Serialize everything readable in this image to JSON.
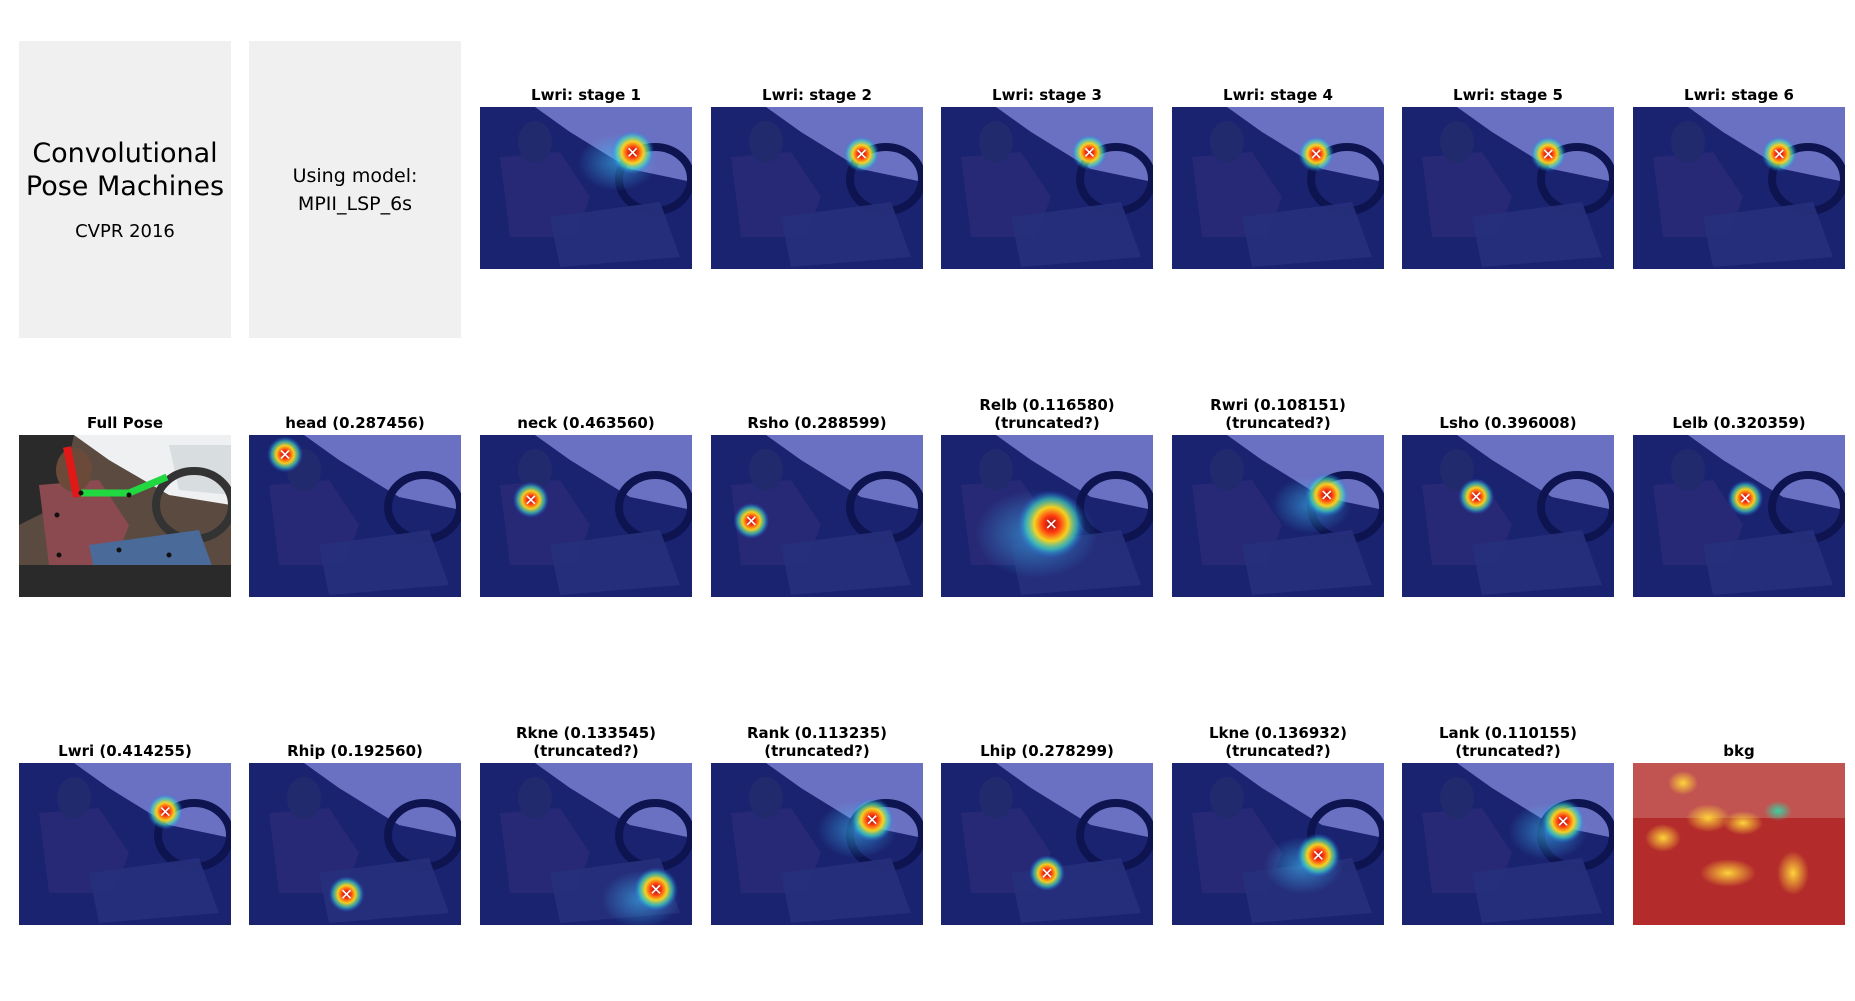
{
  "title_box": {
    "line1": "Convolutional",
    "line2": "Pose Machines",
    "line3": "CVPR 2016"
  },
  "model_box": {
    "line1": "Using model:",
    "line2": "MPII_LSP_6s"
  },
  "stages": [
    {
      "title": "Lwri: stage 1",
      "hx": 0.72,
      "hy": 0.28,
      "spread": "mid"
    },
    {
      "title": "Lwri: stage 2",
      "hx": 0.71,
      "hy": 0.29,
      "spread": "low"
    },
    {
      "title": "Lwri: stage 3",
      "hx": 0.7,
      "hy": 0.28,
      "spread": "low"
    },
    {
      "title": "Lwri: stage 4",
      "hx": 0.68,
      "hy": 0.29,
      "spread": "low"
    },
    {
      "title": "Lwri: stage 5",
      "hx": 0.69,
      "hy": 0.29,
      "spread": "low"
    },
    {
      "title": "Lwri: stage 6",
      "hx": 0.69,
      "hy": 0.29,
      "spread": "low"
    }
  ],
  "full_pose": {
    "title": "Full Pose"
  },
  "parts_row2": [
    {
      "line1": "head (0.287456)",
      "line2": "",
      "hx": 0.17,
      "hy": 0.12,
      "spread": "low"
    },
    {
      "line1": "neck (0.463560)",
      "line2": "",
      "hx": 0.24,
      "hy": 0.4,
      "spread": "low"
    },
    {
      "line1": "Rsho (0.288599)",
      "line2": "",
      "hx": 0.19,
      "hy": 0.53,
      "spread": "low"
    },
    {
      "line1": "Relb (0.116580)",
      "line2": "(truncated?)",
      "hx": 0.52,
      "hy": 0.55,
      "spread": "high"
    },
    {
      "line1": "Rwri (0.108151)",
      "line2": "(truncated?)",
      "hx": 0.73,
      "hy": 0.37,
      "spread": "mid"
    },
    {
      "line1": "Lsho (0.396008)",
      "line2": "",
      "hx": 0.35,
      "hy": 0.38,
      "spread": "low"
    },
    {
      "line1": "Lelb (0.320359)",
      "line2": "",
      "hx": 0.53,
      "hy": 0.39,
      "spread": "low"
    }
  ],
  "parts_row3": [
    {
      "line1": "Lwri (0.414255)",
      "line2": "",
      "hx": 0.69,
      "hy": 0.3,
      "spread": "low"
    },
    {
      "line1": "Rhip (0.192560)",
      "line2": "",
      "hx": 0.46,
      "hy": 0.81,
      "spread": "low"
    },
    {
      "line1": "Rkne (0.133545)",
      "line2": "(truncated?)",
      "hx": 0.83,
      "hy": 0.78,
      "spread": "mid"
    },
    {
      "line1": "Rank (0.113235)",
      "line2": "(truncated?)",
      "hx": 0.76,
      "hy": 0.35,
      "spread": "mid"
    },
    {
      "line1": "Lhip (0.278299)",
      "line2": "",
      "hx": 0.5,
      "hy": 0.68,
      "spread": "low"
    },
    {
      "line1": "Lkne (0.136932)",
      "line2": "(truncated?)",
      "hx": 0.69,
      "hy": 0.57,
      "spread": "mid"
    },
    {
      "line1": "Lank (0.110155)",
      "line2": "(truncated?)",
      "hx": 0.76,
      "hy": 0.36,
      "spread": "mid"
    }
  ],
  "bkg": {
    "title": "bkg"
  },
  "colors": {
    "heatmap_bg": "#1a2370",
    "sky": "#7a7fd0",
    "hot": "#c81818",
    "bkg_red": "#b32b2b"
  }
}
